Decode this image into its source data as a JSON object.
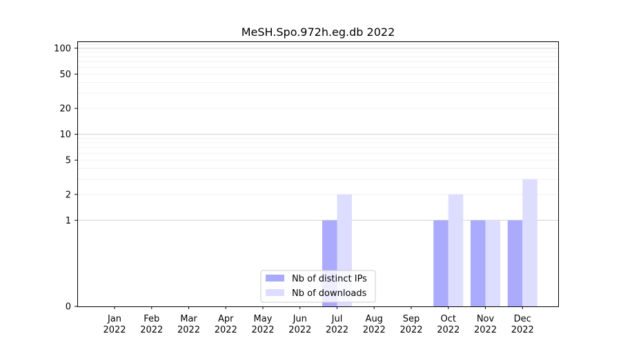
{
  "chart_data": {
    "type": "bar",
    "title": "MeSH.Spo.972h.eg.db 2022",
    "categories": [
      [
        "Jan",
        "2022"
      ],
      [
        "Feb",
        "2022"
      ],
      [
        "Mar",
        "2022"
      ],
      [
        "Apr",
        "2022"
      ],
      [
        "May",
        "2022"
      ],
      [
        "Jun",
        "2022"
      ],
      [
        "Jul",
        "2022"
      ],
      [
        "Aug",
        "2022"
      ],
      [
        "Sep",
        "2022"
      ],
      [
        "Oct",
        "2022"
      ],
      [
        "Nov",
        "2022"
      ],
      [
        "Dec",
        "2022"
      ]
    ],
    "series": [
      {
        "name": "Nb of distinct IPs",
        "color": "#aaaaff",
        "values": [
          0,
          0,
          0,
          0,
          0,
          0,
          1,
          0,
          0,
          1,
          1,
          1
        ]
      },
      {
        "name": "Nb of downloads",
        "color": "#ddddff",
        "values": [
          0,
          0,
          0,
          0,
          0,
          0,
          2,
          0,
          0,
          2,
          1,
          3
        ]
      }
    ],
    "y_scale": "symlog",
    "y_ticks": [
      0,
      1,
      2,
      5,
      10,
      20,
      50,
      100
    ],
    "y_tick_labels": [
      "0",
      "1",
      "2",
      "5",
      "10",
      "20",
      "50",
      "100"
    ],
    "ylim": [
      0,
      120
    ],
    "grid": true,
    "legend_position": "lower-center"
  }
}
